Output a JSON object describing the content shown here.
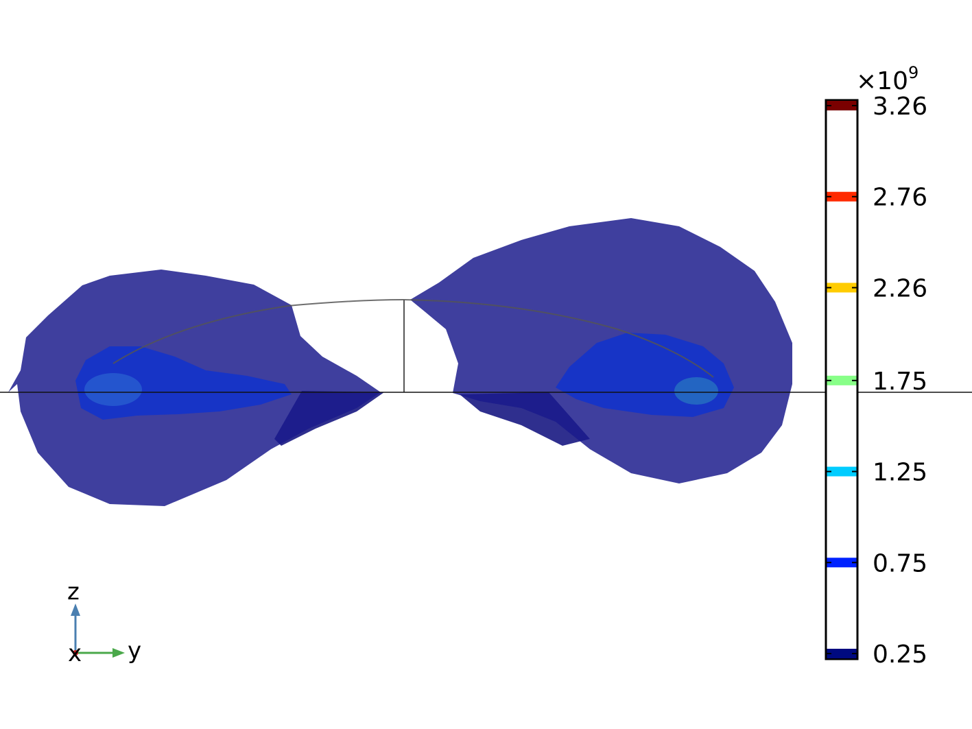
{
  "colorbar": {
    "multiplier": "×10",
    "exponent": "9",
    "range": [
      0.25,
      3.26
    ],
    "levels": [
      {
        "value": 3.26,
        "label": "3.26",
        "color": "#7a0000"
      },
      {
        "value": 2.76,
        "label": "2.76",
        "color": "#ff2a00"
      },
      {
        "value": 2.26,
        "label": "2.26",
        "color": "#ffcc00"
      },
      {
        "value": 1.75,
        "label": "1.75",
        "color": "#88ff88"
      },
      {
        "value": 1.25,
        "label": "1.25",
        "color": "#00ccff"
      },
      {
        "value": 0.75,
        "label": "0.75",
        "color": "#0022ff"
      },
      {
        "value": 0.25,
        "label": "0.25",
        "color": "#000a80"
      }
    ]
  },
  "axes_triad": {
    "z_label": "z",
    "y_label": "y",
    "x_label": "x",
    "z_color": "#4a7fb0",
    "y_color": "#4aa84a",
    "x_color": "#cc2222"
  },
  "surface_colors": {
    "outer": "#1a1a8c",
    "inner": "#1133cc",
    "core": "#2a60d0"
  }
}
